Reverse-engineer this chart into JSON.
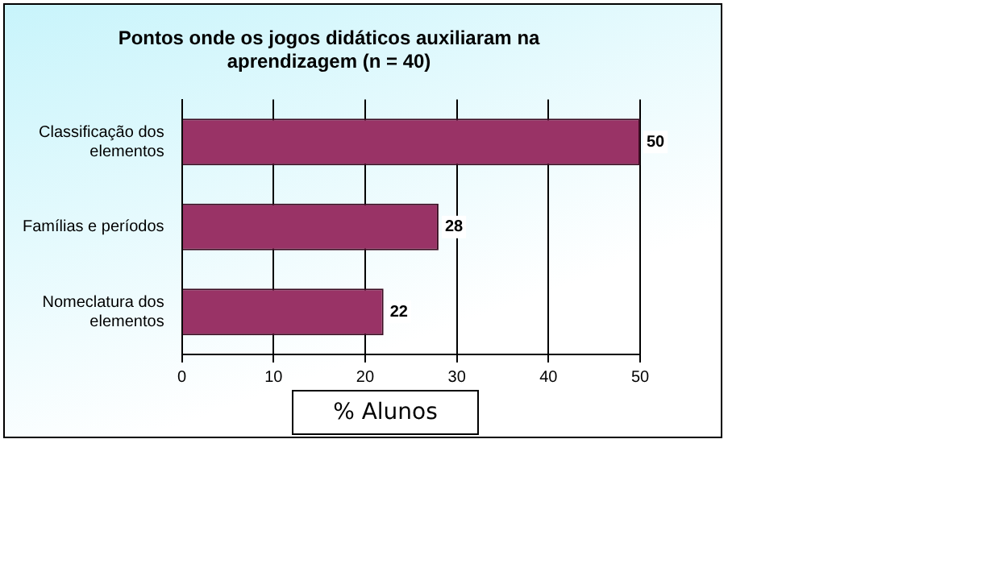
{
  "chart_data": {
    "type": "bar",
    "orientation": "horizontal",
    "title": "Pontos onde os jogos didáticos auxiliaram na aprendizagem (n = 40)",
    "categories": [
      "Classificação dos elementos",
      "Famílias e períodos",
      "Nomeclatura dos elementos"
    ],
    "values": [
      50,
      28,
      22
    ],
    "color": "#993366",
    "xlim": [
      0,
      50
    ],
    "xticks": [
      0,
      10,
      20,
      30,
      40,
      50
    ],
    "xlabel": "% Alunos",
    "grid": "x",
    "legend": false,
    "data_labels": true
  }
}
